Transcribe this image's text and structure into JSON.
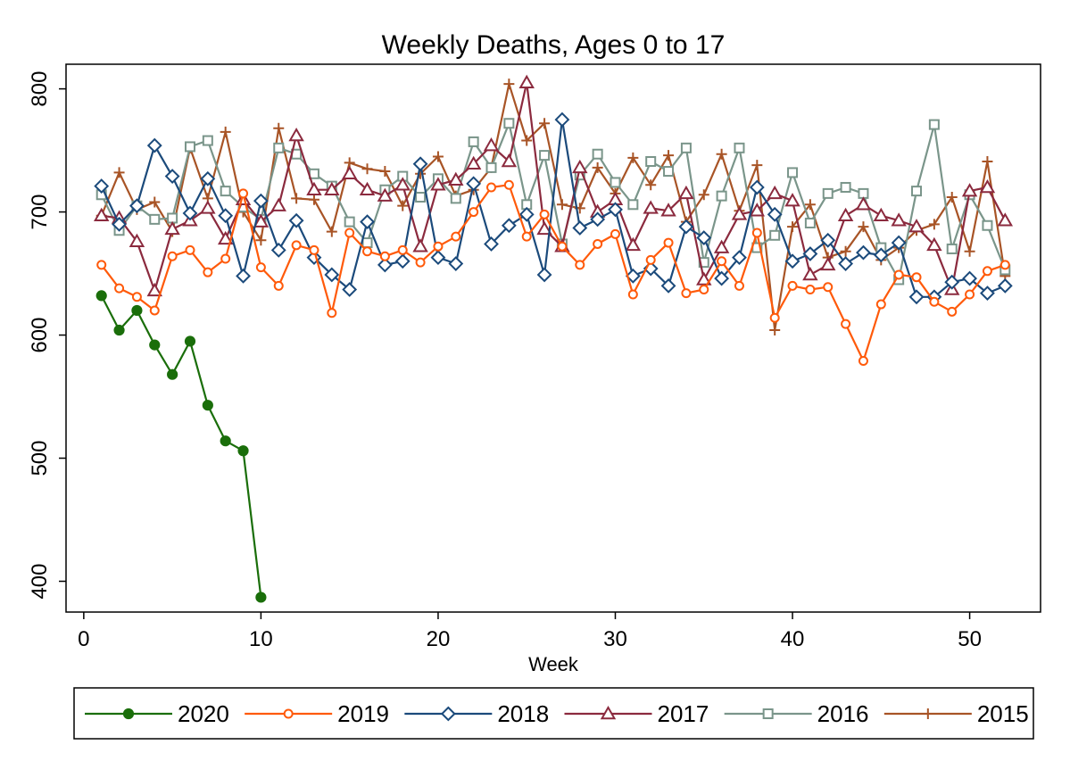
{
  "chart_data": {
    "type": "line",
    "title": "Weekly Deaths, Ages 0 to 17",
    "xlabel": "Week",
    "ylabel": "",
    "xlim": [
      -1,
      54
    ],
    "ylim": [
      375,
      820
    ],
    "xticks": [
      0,
      10,
      20,
      30,
      40,
      50
    ],
    "yticks": [
      400,
      500,
      600,
      700,
      800
    ],
    "grid": false,
    "legend_position": "bottom",
    "series": [
      {
        "name": "2020",
        "color": "#1a6e0a",
        "marker": "filled-circle",
        "x": [
          1,
          2,
          3,
          4,
          5,
          6,
          7,
          8,
          9,
          10
        ],
        "y": [
          632,
          604,
          620,
          592,
          568,
          595,
          543,
          514,
          506,
          387
        ]
      },
      {
        "name": "2019",
        "color": "#ff5a0a",
        "marker": "hollow-circle",
        "x": [
          1,
          2,
          3,
          4,
          5,
          6,
          7,
          8,
          9,
          10,
          11,
          12,
          13,
          14,
          15,
          16,
          17,
          18,
          19,
          20,
          21,
          22,
          23,
          24,
          25,
          26,
          27,
          28,
          29,
          30,
          31,
          32,
          33,
          34,
          35,
          36,
          37,
          38,
          39,
          40,
          41,
          42,
          43,
          44,
          45,
          46,
          47,
          48,
          49,
          50,
          51,
          52
        ],
        "y": [
          657,
          638,
          631,
          620,
          664,
          669,
          651,
          662,
          715,
          655,
          640,
          673,
          669,
          618,
          683,
          668,
          664,
          669,
          659,
          672,
          680,
          700,
          720,
          722,
          680,
          698,
          672,
          657,
          674,
          682,
          633,
          661,
          675,
          634,
          637,
          660,
          640,
          683,
          614,
          640,
          637,
          639,
          609,
          579,
          625,
          649,
          647,
          627,
          619,
          633,
          652,
          657
        ]
      },
      {
        "name": "2018",
        "color": "#1b4a7b",
        "marker": "hollow-diamond",
        "x": [
          1,
          2,
          3,
          4,
          5,
          6,
          7,
          8,
          9,
          10,
          11,
          12,
          13,
          14,
          15,
          16,
          17,
          18,
          19,
          20,
          21,
          22,
          23,
          24,
          25,
          26,
          27,
          28,
          29,
          30,
          31,
          32,
          33,
          34,
          35,
          36,
          37,
          38,
          39,
          40,
          41,
          42,
          43,
          44,
          45,
          46,
          47,
          48,
          49,
          50,
          51,
          52
        ],
        "y": [
          721,
          690,
          705,
          754,
          729,
          699,
          727,
          697,
          648,
          709,
          669,
          693,
          663,
          649,
          637,
          692,
          657,
          660,
          739,
          663,
          658,
          723,
          674,
          689,
          698,
          649,
          775,
          687,
          694,
          702,
          648,
          654,
          640,
          688,
          679,
          646,
          663,
          720,
          698,
          660,
          666,
          677,
          658,
          667,
          665,
          675,
          631,
          631,
          643,
          646,
          634,
          640
        ]
      },
      {
        "name": "2017",
        "color": "#8b2a3e",
        "marker": "hollow-triangle",
        "x": [
          1,
          2,
          3,
          4,
          5,
          6,
          7,
          8,
          9,
          10,
          11,
          12,
          13,
          14,
          15,
          16,
          17,
          18,
          19,
          20,
          21,
          22,
          23,
          24,
          25,
          26,
          27,
          28,
          29,
          30,
          31,
          32,
          33,
          34,
          35,
          36,
          37,
          38,
          39,
          40,
          41,
          42,
          43,
          44,
          45,
          46,
          47,
          48,
          49,
          50,
          51,
          52
        ],
        "y": [
          697,
          695,
          676,
          636,
          686,
          693,
          703,
          678,
          710,
          692,
          705,
          762,
          718,
          718,
          731,
          718,
          713,
          722,
          672,
          722,
          726,
          739,
          754,
          741,
          805,
          686,
          672,
          736,
          700,
          710,
          673,
          703,
          701,
          715,
          645,
          671,
          698,
          701,
          715,
          709,
          649,
          657,
          697,
          706,
          697,
          693,
          688,
          673,
          637,
          717,
          720,
          693
        ]
      },
      {
        "name": "2016",
        "color": "#7a958a",
        "marker": "hollow-square",
        "x": [
          1,
          2,
          3,
          4,
          5,
          6,
          7,
          8,
          9,
          10,
          11,
          12,
          13,
          14,
          15,
          16,
          17,
          18,
          19,
          20,
          21,
          22,
          23,
          24,
          25,
          26,
          27,
          28,
          29,
          30,
          31,
          32,
          33,
          34,
          35,
          36,
          37,
          38,
          39,
          40,
          41,
          42,
          43,
          44,
          45,
          46,
          47,
          48,
          49,
          50,
          51,
          52
        ],
        "y": [
          714,
          685,
          705,
          694,
          695,
          753,
          758,
          717,
          704,
          694,
          752,
          747,
          731,
          721,
          692,
          675,
          718,
          729,
          712,
          727,
          711,
          757,
          736,
          772,
          706,
          746,
          674,
          730,
          747,
          724,
          706,
          741,
          733,
          752,
          659,
          713,
          752,
          671,
          681,
          732,
          691,
          715,
          720,
          715,
          671,
          645,
          717,
          771,
          670,
          714,
          689,
          653
        ]
      },
      {
        "name": "2015",
        "color": "#a85426",
        "marker": "plus",
        "x": [
          1,
          2,
          3,
          4,
          5,
          6,
          7,
          8,
          9,
          10,
          11,
          12,
          13,
          14,
          15,
          16,
          17,
          18,
          19,
          20,
          21,
          22,
          23,
          24,
          25,
          26,
          27,
          28,
          29,
          30,
          31,
          32,
          33,
          34,
          35,
          36,
          37,
          38,
          39,
          40,
          41,
          42,
          43,
          44,
          45,
          46,
          47,
          48,
          49,
          50,
          51,
          52
        ],
        "y": [
          697,
          732,
          702,
          708,
          684,
          752,
          711,
          765,
          700,
          677,
          768,
          711,
          710,
          684,
          740,
          735,
          733,
          705,
          731,
          745,
          713,
          718,
          736,
          804,
          758,
          772,
          706,
          703,
          736,
          715,
          744,
          722,
          746,
          692,
          714,
          747,
          701,
          738,
          604,
          688,
          706,
          663,
          668,
          688,
          661,
          671,
          685,
          690,
          712,
          668,
          741,
          648
        ]
      }
    ]
  }
}
